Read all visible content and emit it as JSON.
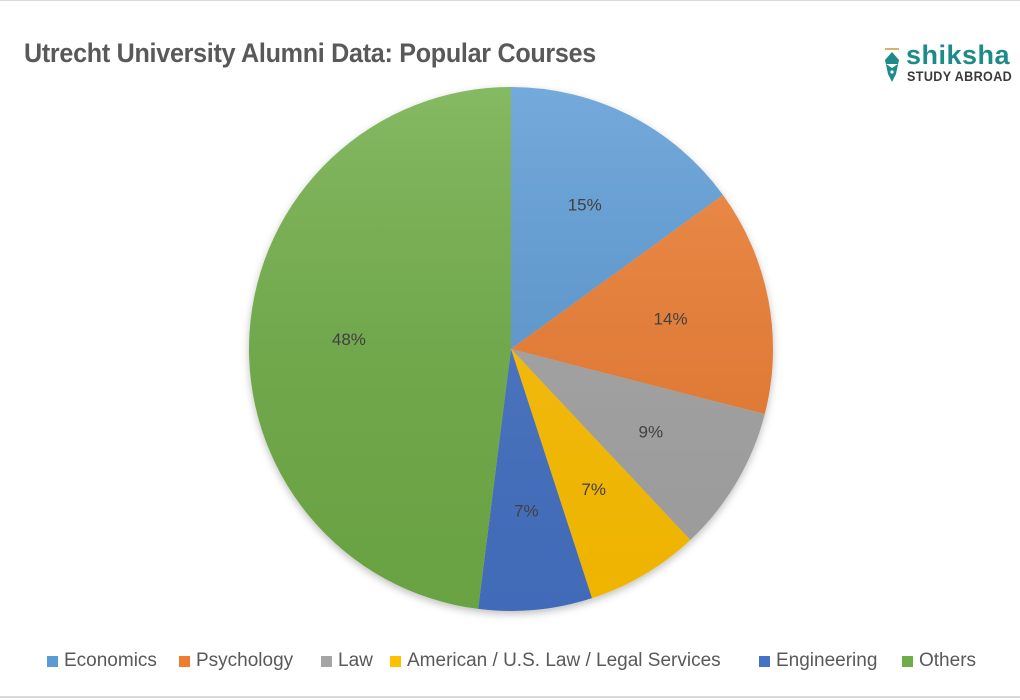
{
  "header": {
    "title": "Utrecht University Alumni Data: Popular Courses"
  },
  "logo": {
    "brand": "shiksha",
    "tagline": "STUDY ABROAD",
    "icon": "pen-nib-icon",
    "brand_color": "#1f8a8a"
  },
  "chart_data": {
    "type": "pie",
    "title": "Utrecht University Alumni Data: Popular Courses",
    "categories": [
      "Economics",
      "Psychology",
      "Law",
      "American / U.S. Law / Legal Services",
      "Engineering",
      "Others"
    ],
    "values": [
      15,
      14,
      9,
      7,
      7,
      48
    ],
    "labels": [
      "15%",
      "14%",
      "9%",
      "7%",
      "7%",
      "48%"
    ],
    "colors": [
      "#5b9bd5",
      "#ed7d31",
      "#a5a5a5",
      "#ffc000",
      "#4472c4",
      "#70ad47"
    ],
    "start_angle": "12 o'clock, clockwise",
    "legend_position": "bottom",
    "unit": "%"
  },
  "legend": [
    {
      "label": "Economics",
      "color": "#5b9bd5"
    },
    {
      "label": "Psychology",
      "color": "#ed7d31"
    },
    {
      "label": "Law",
      "color": "#a5a5a5"
    },
    {
      "label": "American / U.S. Law / Legal Services",
      "color": "#ffc000"
    },
    {
      "label": "Engineering",
      "color": "#4472c4"
    },
    {
      "label": "Others",
      "color": "#70ad47"
    }
  ]
}
